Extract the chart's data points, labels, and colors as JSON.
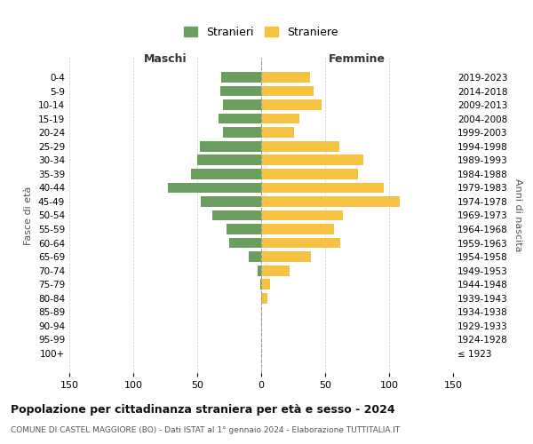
{
  "age_groups": [
    "0-4",
    "5-9",
    "10-14",
    "15-19",
    "20-24",
    "25-29",
    "30-34",
    "35-39",
    "40-44",
    "45-49",
    "50-54",
    "55-59",
    "60-64",
    "65-69",
    "70-74",
    "75-79",
    "80-84",
    "85-89",
    "90-94",
    "95-99",
    "100+"
  ],
  "birth_years": [
    "2019-2023",
    "2014-2018",
    "2009-2013",
    "2004-2008",
    "1999-2003",
    "1994-1998",
    "1989-1993",
    "1984-1988",
    "1979-1983",
    "1974-1978",
    "1969-1973",
    "1964-1968",
    "1959-1963",
    "1954-1958",
    "1949-1953",
    "1944-1948",
    "1939-1943",
    "1934-1938",
    "1929-1933",
    "1924-1928",
    "≤ 1923"
  ],
  "maschi": [
    31,
    32,
    30,
    33,
    30,
    48,
    50,
    55,
    73,
    47,
    38,
    27,
    25,
    10,
    3,
    1,
    0,
    0,
    0,
    0,
    0
  ],
  "femmine": [
    38,
    41,
    47,
    30,
    26,
    61,
    80,
    76,
    96,
    108,
    64,
    57,
    62,
    39,
    22,
    7,
    5,
    1,
    1,
    0,
    0
  ],
  "color_maschi": "#6a9e5e",
  "color_femmine": "#f5c242",
  "background_color": "#ffffff",
  "grid_color": "#cccccc",
  "title": "Popolazione per cittadinanza straniera per età e sesso - 2024",
  "subtitle": "COMUNE DI CASTEL MAGGIORE (BO) - Dati ISTAT al 1° gennaio 2024 - Elaborazione TUTTITALIA.IT",
  "legend_stranieri": "Stranieri",
  "legend_straniere": "Straniere",
  "xlabel_left": "Maschi",
  "xlabel_right": "Femmine",
  "ylabel_left": "Fasce di età",
  "ylabel_right": "Anni di nascita",
  "xlim": 150
}
